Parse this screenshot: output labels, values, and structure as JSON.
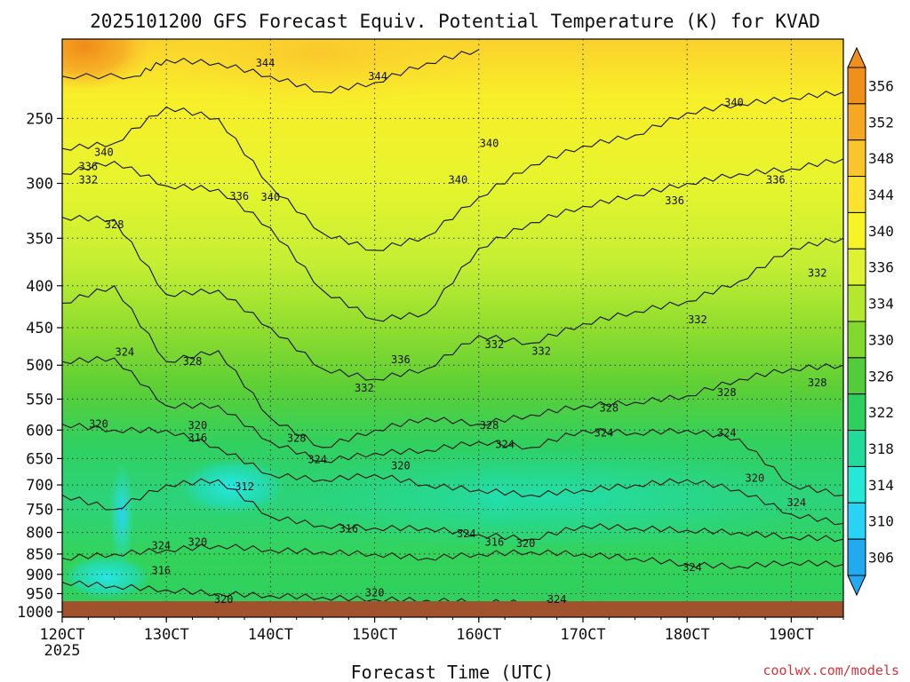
{
  "chart_data": {
    "type": "heatmap",
    "title": "2025101200 GFS Forecast Equiv. Potential Temperature (K) for KVAD",
    "xlabel": "Forecast Time (UTC)",
    "ylabel": "",
    "x_tick_labels": [
      "120CT",
      "130CT",
      "140CT",
      "150CT",
      "160CT",
      "170CT",
      "180CT",
      "190CT"
    ],
    "x_tick_days": [
      12,
      13,
      14,
      15,
      16,
      17,
      18,
      19
    ],
    "x_sublabel": "2025",
    "xlim_days": [
      12,
      19.5
    ],
    "y_tick_labels": [
      "250",
      "300",
      "350",
      "400",
      "450",
      "500",
      "550",
      "600",
      "650",
      "700",
      "750",
      "800",
      "850",
      "900",
      "950",
      "1000"
    ],
    "ylim_hpa": [
      200,
      1015
    ],
    "y_scale": "log",
    "colorbar": {
      "levels": [
        "356",
        "352",
        "348",
        "344",
        "340",
        "336",
        "334",
        "330",
        "326",
        "322",
        "318",
        "314",
        "310",
        "306"
      ],
      "colors": [
        "#f0901a",
        "#f6a825",
        "#fac52c",
        "#fbe22e",
        "#f6f427",
        "#dcf233",
        "#b4e830",
        "#82d82e",
        "#52cc3a",
        "#2ecf5e",
        "#22db9a",
        "#25e8d6",
        "#2ad2f5",
        "#22aaf0"
      ],
      "placement": "right"
    },
    "ground_color": "#a0522d",
    "ground_pressure_hpa": 1000,
    "contour_lines": [
      {
        "label": "344",
        "points": [
          [
            12.0,
            222
          ],
          [
            12.7,
            222
          ],
          [
            13.0,
            212
          ],
          [
            13.5,
            214
          ],
          [
            14.0,
            222
          ],
          [
            14.5,
            232
          ],
          [
            15.0,
            226
          ],
          [
            15.5,
            214
          ],
          [
            16.0,
            206
          ]
        ]
      },
      {
        "label": "340",
        "points": [
          [
            12.0,
            272
          ],
          [
            12.5,
            268
          ],
          [
            13.0,
            242
          ],
          [
            13.5,
            250
          ],
          [
            14.0,
            302
          ],
          [
            14.5,
            345
          ],
          [
            15.0,
            362
          ],
          [
            15.5,
            348
          ],
          [
            16.0,
            312
          ],
          [
            16.5,
            285
          ],
          [
            17.0,
            270
          ],
          [
            17.5,
            262
          ],
          [
            18.0,
            246
          ],
          [
            18.5,
            240
          ],
          [
            19.0,
            236
          ],
          [
            19.5,
            232
          ]
        ]
      },
      {
        "label": "336",
        "points": [
          [
            12.0,
            292
          ],
          [
            12.5,
            282
          ],
          [
            13.0,
            302
          ],
          [
            13.5,
            305
          ],
          [
            14.0,
            340
          ],
          [
            14.5,
            405
          ],
          [
            15.0,
            440
          ],
          [
            15.5,
            432
          ],
          [
            16.0,
            360
          ],
          [
            16.5,
            335
          ],
          [
            17.0,
            320
          ],
          [
            17.5,
            310
          ],
          [
            18.0,
            300
          ],
          [
            18.5,
            292
          ],
          [
            19.0,
            288
          ],
          [
            19.5,
            280
          ]
        ]
      },
      {
        "label": "332",
        "points": [
          [
            12.0,
            330
          ],
          [
            12.5,
            332
          ],
          [
            13.0,
            410
          ],
          [
            13.5,
            405
          ],
          [
            14.0,
            450
          ],
          [
            14.5,
            505
          ],
          [
            15.0,
            520
          ],
          [
            15.5,
            505
          ],
          [
            16.0,
            460
          ],
          [
            16.5,
            470
          ],
          [
            17.0,
            445
          ],
          [
            17.5,
            430
          ],
          [
            18.0,
            418
          ],
          [
            18.5,
            395
          ],
          [
            19.0,
            360
          ],
          [
            19.5,
            350
          ]
        ]
      },
      {
        "label": "328",
        "points": [
          [
            12.0,
            420
          ],
          [
            12.5,
            400
          ],
          [
            13.0,
            495
          ],
          [
            13.5,
            480
          ],
          [
            14.0,
            580
          ],
          [
            14.5,
            630
          ],
          [
            15.0,
            600
          ],
          [
            15.5,
            580
          ],
          [
            16.0,
            590
          ],
          [
            16.5,
            575
          ],
          [
            17.0,
            560
          ],
          [
            17.5,
            555
          ],
          [
            18.0,
            545
          ],
          [
            18.5,
            520
          ],
          [
            19.0,
            505
          ],
          [
            19.5,
            500
          ]
        ]
      },
      {
        "label": "324",
        "points": [
          [
            12.0,
            495
          ],
          [
            12.5,
            490
          ],
          [
            13.0,
            560
          ],
          [
            13.5,
            560
          ],
          [
            14.0,
            620
          ],
          [
            14.5,
            655
          ],
          [
            15.0,
            640
          ],
          [
            15.5,
            635
          ],
          [
            16.0,
            620
          ],
          [
            16.5,
            630
          ],
          [
            17.0,
            600
          ],
          [
            17.5,
            605
          ],
          [
            18.0,
            600
          ],
          [
            18.5,
            615
          ],
          [
            19.0,
            700
          ],
          [
            19.5,
            720
          ]
        ]
      },
      {
        "label": "320",
        "points": [
          [
            12.0,
            590
          ],
          [
            12.5,
            600
          ],
          [
            13.0,
            600
          ],
          [
            13.5,
            630
          ],
          [
            14.0,
            680
          ],
          [
            14.5,
            690
          ],
          [
            15.0,
            680
          ],
          [
            15.5,
            700
          ],
          [
            16.0,
            710
          ],
          [
            16.5,
            720
          ],
          [
            17.0,
            710
          ],
          [
            17.5,
            700
          ],
          [
            18.0,
            690
          ],
          [
            18.5,
            710
          ],
          [
            19.0,
            760
          ],
          [
            19.5,
            780
          ]
        ]
      },
      {
        "label": "316",
        "points": [
          [
            12.0,
            720
          ],
          [
            12.5,
            750
          ],
          [
            13.0,
            700
          ],
          [
            13.5,
            690
          ],
          [
            14.0,
            765
          ],
          [
            14.5,
            785
          ],
          [
            15.0,
            790
          ],
          [
            15.5,
            790
          ],
          [
            16.0,
            805
          ],
          [
            16.5,
            815
          ],
          [
            17.0,
            785
          ],
          [
            17.5,
            790
          ],
          [
            18.0,
            795
          ],
          [
            18.5,
            800
          ],
          [
            19.0,
            810
          ],
          [
            19.5,
            815
          ]
        ]
      },
      {
        "label": "324",
        "points": [
          [
            12.0,
            860
          ],
          [
            12.5,
            850
          ],
          [
            13.0,
            840
          ],
          [
            13.5,
            830
          ],
          [
            14.0,
            840
          ],
          [
            14.5,
            845
          ],
          [
            15.0,
            850
          ],
          [
            15.5,
            860
          ],
          [
            16.0,
            850
          ],
          [
            16.5,
            845
          ],
          [
            17.0,
            850
          ],
          [
            17.5,
            860
          ],
          [
            18.0,
            875
          ],
          [
            18.5,
            880
          ],
          [
            19.0,
            870
          ],
          [
            19.5,
            875
          ]
        ]
      },
      {
        "label": "320",
        "points": [
          [
            12.0,
            920
          ],
          [
            12.5,
            930
          ],
          [
            13.0,
            940
          ],
          [
            13.5,
            950
          ],
          [
            14.0,
            955
          ],
          [
            14.5,
            960
          ],
          [
            15.0,
            965
          ],
          [
            15.5,
            968
          ],
          [
            16.0,
            972
          ],
          [
            16.5,
            975
          ],
          [
            17.0,
            978
          ],
          [
            17.5,
            980
          ],
          [
            18.0,
            982
          ],
          [
            18.5,
            985
          ],
          [
            19.0,
            986
          ],
          [
            19.5,
            987
          ]
        ]
      }
    ],
    "contour_labels": [
      {
        "text": "344",
        "day": 13.95,
        "p": 214
      },
      {
        "text": "344",
        "day": 15.03,
        "p": 222
      },
      {
        "text": "340",
        "day": 18.45,
        "p": 239
      },
      {
        "text": "340",
        "day": 12.4,
        "p": 275
      },
      {
        "text": "340",
        "day": 16.1,
        "p": 268
      },
      {
        "text": "340",
        "day": 15.8,
        "p": 297
      },
      {
        "text": "336",
        "day": 12.25,
        "p": 286
      },
      {
        "text": "332",
        "day": 12.25,
        "p": 297
      },
      {
        "text": "336",
        "day": 13.7,
        "p": 311
      },
      {
        "text": "340",
        "day": 14.0,
        "p": 312
      },
      {
        "text": "336",
        "day": 17.88,
        "p": 315
      },
      {
        "text": "336",
        "day": 18.85,
        "p": 297
      },
      {
        "text": "328",
        "day": 12.5,
        "p": 337
      },
      {
        "text": "332",
        "day": 19.25,
        "p": 386
      },
      {
        "text": "332",
        "day": 18.1,
        "p": 440
      },
      {
        "text": "336",
        "day": 15.25,
        "p": 492
      },
      {
        "text": "324",
        "day": 12.6,
        "p": 482
      },
      {
        "text": "332",
        "day": 16.15,
        "p": 472
      },
      {
        "text": "332",
        "day": 16.6,
        "p": 481
      },
      {
        "text": "328",
        "day": 13.25,
        "p": 495
      },
      {
        "text": "328",
        "day": 19.25,
        "p": 525
      },
      {
        "text": "332",
        "day": 14.9,
        "p": 533
      },
      {
        "text": "328",
        "day": 18.38,
        "p": 540
      },
      {
        "text": "328",
        "day": 17.25,
        "p": 564
      },
      {
        "text": "320",
        "day": 12.35,
        "p": 590
      },
      {
        "text": "320",
        "day": 13.3,
        "p": 592
      },
      {
        "text": "328",
        "day": 16.1,
        "p": 592
      },
      {
        "text": "324",
        "day": 17.2,
        "p": 605
      },
      {
        "text": "324",
        "day": 18.38,
        "p": 605
      },
      {
        "text": "316",
        "day": 13.3,
        "p": 613
      },
      {
        "text": "328",
        "day": 14.25,
        "p": 614
      },
      {
        "text": "324",
        "day": 16.25,
        "p": 625
      },
      {
        "text": "324",
        "day": 14.45,
        "p": 652
      },
      {
        "text": "320",
        "day": 15.25,
        "p": 663
      },
      {
        "text": "320",
        "day": 18.65,
        "p": 687
      },
      {
        "text": "312",
        "day": 13.75,
        "p": 703
      },
      {
        "text": "324",
        "day": 19.05,
        "p": 736
      },
      {
        "text": "316",
        "day": 14.75,
        "p": 792
      },
      {
        "text": "324",
        "day": 15.88,
        "p": 803
      },
      {
        "text": "316",
        "day": 16.15,
        "p": 822
      },
      {
        "text": "320",
        "day": 16.45,
        "p": 825
      },
      {
        "text": "324",
        "day": 12.95,
        "p": 830
      },
      {
        "text": "320",
        "day": 13.3,
        "p": 822
      },
      {
        "text": "324",
        "day": 18.05,
        "p": 883
      },
      {
        "text": "316",
        "day": 12.95,
        "p": 890
      },
      {
        "text": "320",
        "day": 15.0,
        "p": 948
      },
      {
        "text": "320",
        "day": 13.55,
        "p": 966
      },
      {
        "text": "324",
        "day": 16.75,
        "p": 966
      }
    ]
  },
  "watermark": "coolwx.com/models"
}
